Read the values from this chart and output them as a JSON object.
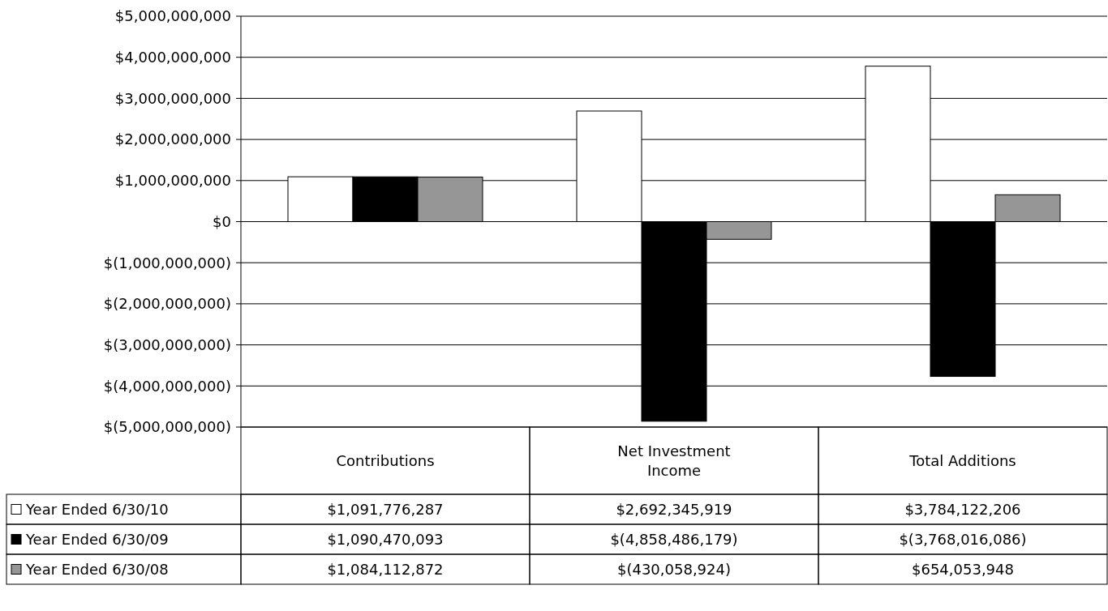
{
  "chart_data": {
    "type": "bar",
    "categories": [
      "Contributions",
      "Net Investment Income",
      "Total Additions"
    ],
    "series": [
      {
        "name": "Year Ended 6/30/10",
        "color": "#ffffff",
        "values": [
          1091776287,
          2692345919,
          3784122206
        ],
        "value_labels": [
          "$1,091,776,287",
          "$2,692,345,919",
          "$3,784,122,206"
        ]
      },
      {
        "name": "Year Ended 6/30/09",
        "color": "#000000",
        "values": [
          1090470093,
          -4858486179,
          -3768016086
        ],
        "value_labels": [
          "$1,090,470,093",
          "$(4,858,486,179)",
          "$(3,768,016,086)"
        ]
      },
      {
        "name": "Year Ended 6/30/08",
        "color": "#969696",
        "values": [
          1084112872,
          -430058924,
          654053948
        ],
        "value_labels": [
          "$1,084,112,872",
          "$(430,058,924)",
          "$654,053,948"
        ]
      }
    ],
    "ylim": [
      -5000000000,
      5000000000
    ],
    "yticks": [
      {
        "value": -5000000000,
        "label": "$(5,000,000,000)"
      },
      {
        "value": -4000000000,
        "label": "$(4,000,000,000)"
      },
      {
        "value": -3000000000,
        "label": "$(3,000,000,000)"
      },
      {
        "value": -2000000000,
        "label": "$(2,000,000,000)"
      },
      {
        "value": -1000000000,
        "label": "$(1,000,000,000)"
      },
      {
        "value": 0,
        "label": "$0"
      },
      {
        "value": 1000000000,
        "label": "$1,000,000,000"
      },
      {
        "value": 2000000000,
        "label": "$2,000,000,000"
      },
      {
        "value": 3000000000,
        "label": "$3,000,000,000"
      },
      {
        "value": 4000000000,
        "label": "$4,000,000,000"
      },
      {
        "value": 5000000000,
        "label": "$5,000,000,000"
      }
    ],
    "grid": "y",
    "legend": "bottom"
  }
}
